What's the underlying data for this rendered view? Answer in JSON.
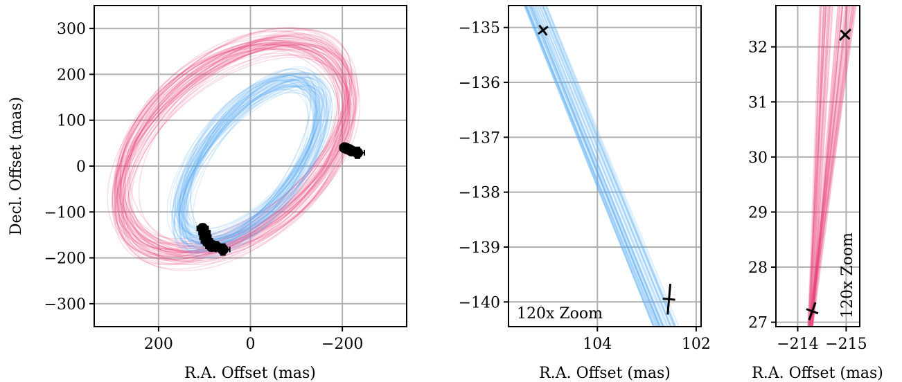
{
  "chart_data": [
    {
      "type": "scatter",
      "panel": "full-orbit",
      "xlabel": "R.A. Offset (mas)",
      "ylabel": "Decl. Offset (mas)",
      "xlim": [
        340,
        -340
      ],
      "ylim": [
        -350,
        350
      ],
      "x_inverted": true,
      "xticks": [
        200,
        0,
        -200
      ],
      "xtick_labels": [
        "200",
        "0",
        "−200"
      ],
      "yticks": [
        300,
        200,
        100,
        0,
        -100,
        -200,
        -300
      ],
      "ytick_labels": [
        "300",
        "200",
        "100",
        "0",
        "−100",
        "−200",
        "−300"
      ],
      "grid": true,
      "orbit_bundles": [
        {
          "color": "#e8457a",
          "cx": 35,
          "cy": 40,
          "a": 285,
          "b": 175,
          "rot_deg": -40,
          "count": 60
        },
        {
          "color": "#5aaef5",
          "cx": 0,
          "cy": 10,
          "a": 210,
          "b": 100,
          "rot_deg": -52,
          "count": 60
        }
      ],
      "data_points": [
        {
          "x": 104,
          "y": -136,
          "xerr": 12,
          "yerr": 10
        },
        {
          "x": 100,
          "y": -145,
          "xerr": 12,
          "yerr": 10
        },
        {
          "x": 98,
          "y": -155,
          "xerr": 12,
          "yerr": 10
        },
        {
          "x": 95,
          "y": -163,
          "xerr": 12,
          "yerr": 10
        },
        {
          "x": 90,
          "y": -168,
          "xerr": 12,
          "yerr": 10
        },
        {
          "x": 85,
          "y": -175,
          "xerr": 12,
          "yerr": 10
        },
        {
          "x": 75,
          "y": -175,
          "xerr": 12,
          "yerr": 10
        },
        {
          "x": 60,
          "y": -182,
          "xerr": 15,
          "yerr": 12
        },
        {
          "x": -205,
          "y": 40,
          "xerr": 10,
          "yerr": 8
        },
        {
          "x": -210,
          "y": 38,
          "xerr": 10,
          "yerr": 8
        },
        {
          "x": -215,
          "y": 36,
          "xerr": 10,
          "yerr": 8
        },
        {
          "x": -220,
          "y": 33,
          "xerr": 10,
          "yerr": 8
        },
        {
          "x": -233,
          "y": 29,
          "xerr": 15,
          "yerr": 12
        }
      ]
    },
    {
      "type": "line",
      "panel": "zoom-blue",
      "xlabel": "R.A. Offset (mas)",
      "ylabel": "",
      "xlim": [
        105.8,
        101.9
      ],
      "ylim": [
        -140.45,
        -134.6
      ],
      "x_inverted": true,
      "xticks": [
        104,
        102
      ],
      "xtick_labels": [
        "104",
        "102"
      ],
      "yticks": [
        -135,
        -136,
        -137,
        -138,
        -139,
        -140
      ],
      "ytick_labels": [
        "−135",
        "−136",
        "−137",
        "−138",
        "−139",
        "−140"
      ],
      "grid": true,
      "annotation": "120x Zoom",
      "band": {
        "color": "#5aaef5",
        "line": [
          [
            105.3,
            -134.6
          ],
          [
            102.55,
            -140.45
          ]
        ],
        "x_spread": 0.5,
        "count": 45
      },
      "markers": [
        {
          "x": 105.1,
          "y": -135.05,
          "err_major": 0.11,
          "angle_deg": 37
        },
        {
          "x": 102.55,
          "y": -139.95,
          "err_major": 0.28,
          "angle_deg": 85
        }
      ]
    },
    {
      "type": "line",
      "panel": "zoom-red",
      "xlabel": "R.A. Offset (mas)",
      "ylabel": "",
      "xlim": [
        -213.55,
        -215.28
      ],
      "ylim": [
        26.92,
        32.75
      ],
      "x_inverted": true,
      "xticks": [
        -214,
        -215
      ],
      "xtick_labels": [
        "−214",
        "−215"
      ],
      "yticks": [
        27,
        28,
        29,
        30,
        31,
        32
      ],
      "ytick_labels": [
        "27",
        "28",
        "29",
        "30",
        "31",
        "32"
      ],
      "grid": true,
      "annotation": "120x Zoom",
      "band": {
        "color": "#e8457a",
        "apex": [
          -214.25,
          26.9
        ],
        "x_top": [
          -214.45,
          -215.28
        ],
        "count": 45
      },
      "markers": [
        {
          "x": -214.3,
          "y": 27.2,
          "err_major": 0.17,
          "angle_deg": 70
        },
        {
          "x": -214.98,
          "y": 32.22,
          "err_major": 0.14,
          "angle_deg": 45
        }
      ]
    }
  ]
}
